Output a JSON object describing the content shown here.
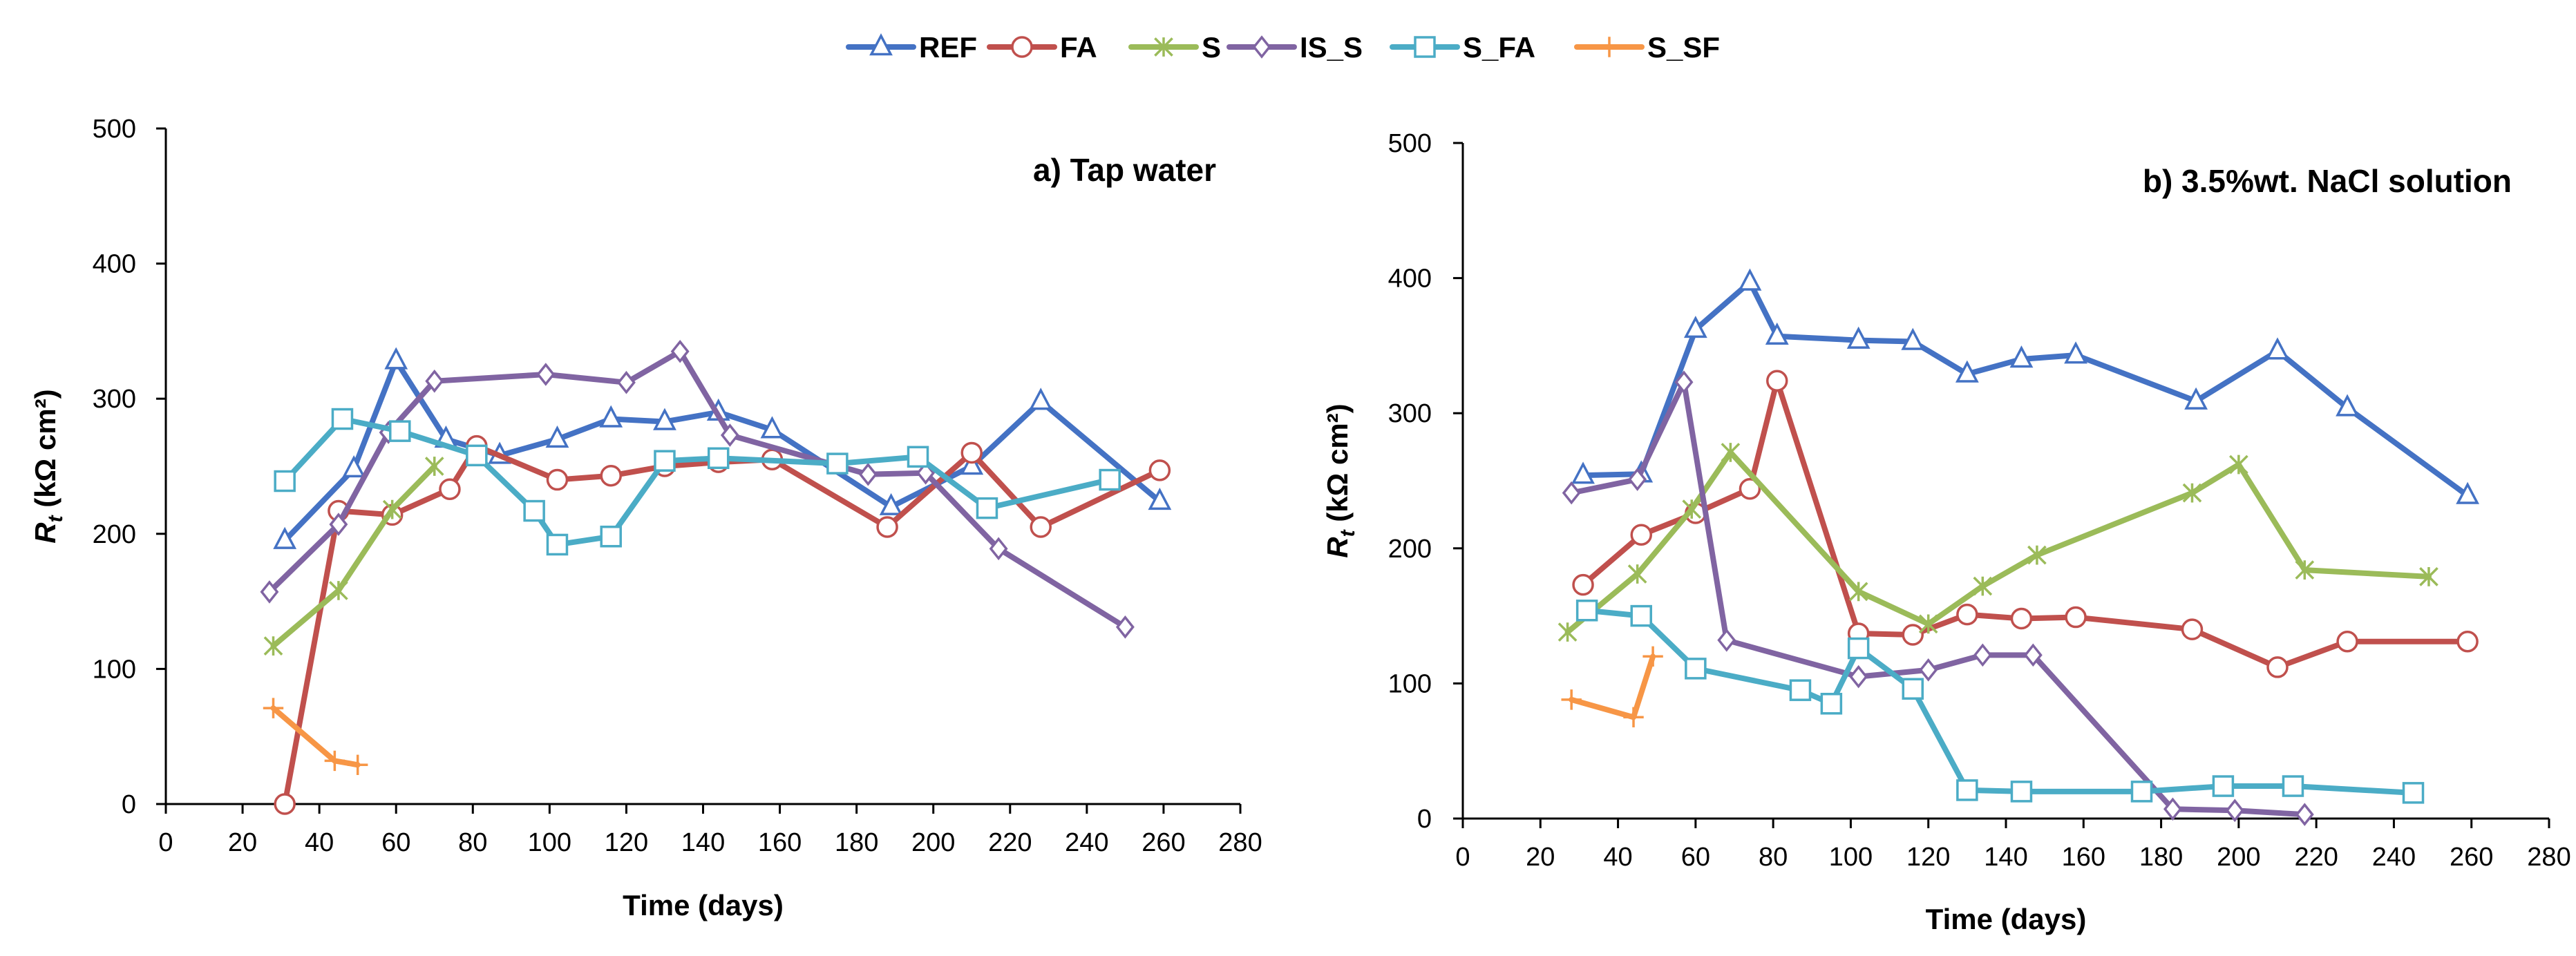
{
  "legend": [
    {
      "name": "REF",
      "color": "#4472c4",
      "marker": "triangle"
    },
    {
      "name": "FA",
      "color": "#c0504d",
      "marker": "circle"
    },
    {
      "name": "S",
      "color": "#9bbb59",
      "marker": "star"
    },
    {
      "name": "IS_S",
      "color": "#8064a2",
      "marker": "diamond"
    },
    {
      "name": "S_FA",
      "color": "#4bacc6",
      "marker": "square"
    },
    {
      "name": "S_SF",
      "color": "#f79646",
      "marker": "plus"
    }
  ],
  "chart_data": [
    {
      "type": "line",
      "title": "a) Tap water",
      "xlabel": "Time (days)",
      "ylabel_main": "R",
      "ylabel_sub": "t",
      "ylabel_unit": " (kΩ cm²)",
      "xlim": [
        0,
        280
      ],
      "ylim": [
        0,
        500
      ],
      "xticks": [
        "0",
        "20",
        "40",
        "60",
        "80",
        "100",
        "120",
        "140",
        "160",
        "180",
        "200",
        "220",
        "240",
        "260",
        "280"
      ],
      "yticks": [
        "0",
        "100",
        "200",
        "300",
        "400",
        "500"
      ],
      "series": [
        {
          "name": "REF",
          "x": [
            31,
            49,
            60,
            73,
            87,
            102,
            116,
            130,
            144,
            158,
            189,
            210,
            228,
            259
          ],
          "y": [
            195,
            248,
            328,
            270,
            258,
            270,
            285,
            283,
            290,
            277,
            220,
            250,
            298,
            224
          ]
        },
        {
          "name": "FA",
          "x": [
            31,
            45,
            59,
            74,
            81,
            102,
            116,
            130,
            144,
            158,
            188,
            210,
            228,
            259
          ],
          "y": [
            0,
            217,
            214,
            233,
            265,
            240,
            243,
            250,
            253,
            255,
            205,
            260,
            205,
            247
          ]
        },
        {
          "name": "S",
          "x": [
            28,
            45,
            59,
            70
          ],
          "y": [
            117,
            158,
            218,
            250
          ]
        },
        {
          "name": "IS_S",
          "x": [
            27,
            45,
            58,
            70,
            99,
            120,
            134,
            147,
            183,
            198,
            217,
            250
          ],
          "y": [
            157,
            207,
            275,
            313,
            318,
            312,
            335,
            273,
            244,
            245,
            189,
            131
          ]
        },
        {
          "name": "S_FA",
          "x": [
            31,
            46,
            61,
            81,
            96,
            102,
            116,
            130,
            144,
            175,
            196,
            214,
            246
          ],
          "y": [
            239,
            285,
            276,
            258,
            217,
            192,
            198,
            254,
            256,
            252,
            257,
            219,
            240
          ]
        },
        {
          "name": "S_SF",
          "x": [
            28,
            44,
            50
          ],
          "y": [
            71,
            32,
            29
          ]
        }
      ]
    },
    {
      "type": "line",
      "title": "b) 3.5%wt. NaCl solution",
      "xlabel": "Time (days)",
      "ylabel_main": "R",
      "ylabel_sub": "t",
      "ylabel_unit": " (kΩ cm²)",
      "xlim": [
        0,
        280
      ],
      "ylim": [
        0,
        500
      ],
      "xticks": [
        "0",
        "20",
        "40",
        "60",
        "80",
        "100",
        "120",
        "140",
        "160",
        "180",
        "200",
        "220",
        "240",
        "260",
        "280"
      ],
      "yticks": [
        "0",
        "100",
        "200",
        "300",
        "400",
        "500"
      ],
      "series": [
        {
          "name": "REF",
          "x": [
            31,
            46,
            60,
            74,
            81,
            102,
            116,
            130,
            144,
            158,
            189,
            210,
            228,
            259
          ],
          "y": [
            254,
            255,
            362,
            397,
            357,
            354,
            353,
            329,
            340,
            343,
            309,
            346,
            304,
            239
          ]
        },
        {
          "name": "FA",
          "x": [
            31,
            46,
            60,
            74,
            81,
            102,
            116,
            130,
            144,
            158,
            188,
            210,
            228,
            259
          ],
          "y": [
            173,
            210,
            226,
            244,
            324,
            137,
            136,
            151,
            148,
            149,
            140,
            112,
            131,
            131
          ]
        },
        {
          "name": "S",
          "x": [
            27,
            45,
            59,
            69,
            102,
            120,
            134,
            148,
            188,
            200,
            217,
            249
          ],
          "y": [
            138,
            181,
            229,
            271,
            168,
            144,
            172,
            195,
            241,
            262,
            184,
            179
          ]
        },
        {
          "name": "IS_S",
          "x": [
            28,
            45,
            57,
            68,
            102,
            120,
            134,
            147,
            183,
            199,
            217
          ],
          "y": [
            241,
            251,
            323,
            132,
            105,
            110,
            121,
            121,
            7,
            6,
            3
          ]
        },
        {
          "name": "S_FA",
          "x": [
            32,
            46,
            60,
            87,
            95,
            102,
            116,
            130,
            144,
            175,
            196,
            214,
            245
          ],
          "y": [
            154,
            150,
            111,
            95,
            85,
            126,
            96,
            21,
            20,
            20,
            24,
            24,
            19
          ]
        },
        {
          "name": "S_SF",
          "x": [
            28,
            44,
            49
          ],
          "y": [
            88,
            75,
            120
          ]
        }
      ]
    }
  ]
}
